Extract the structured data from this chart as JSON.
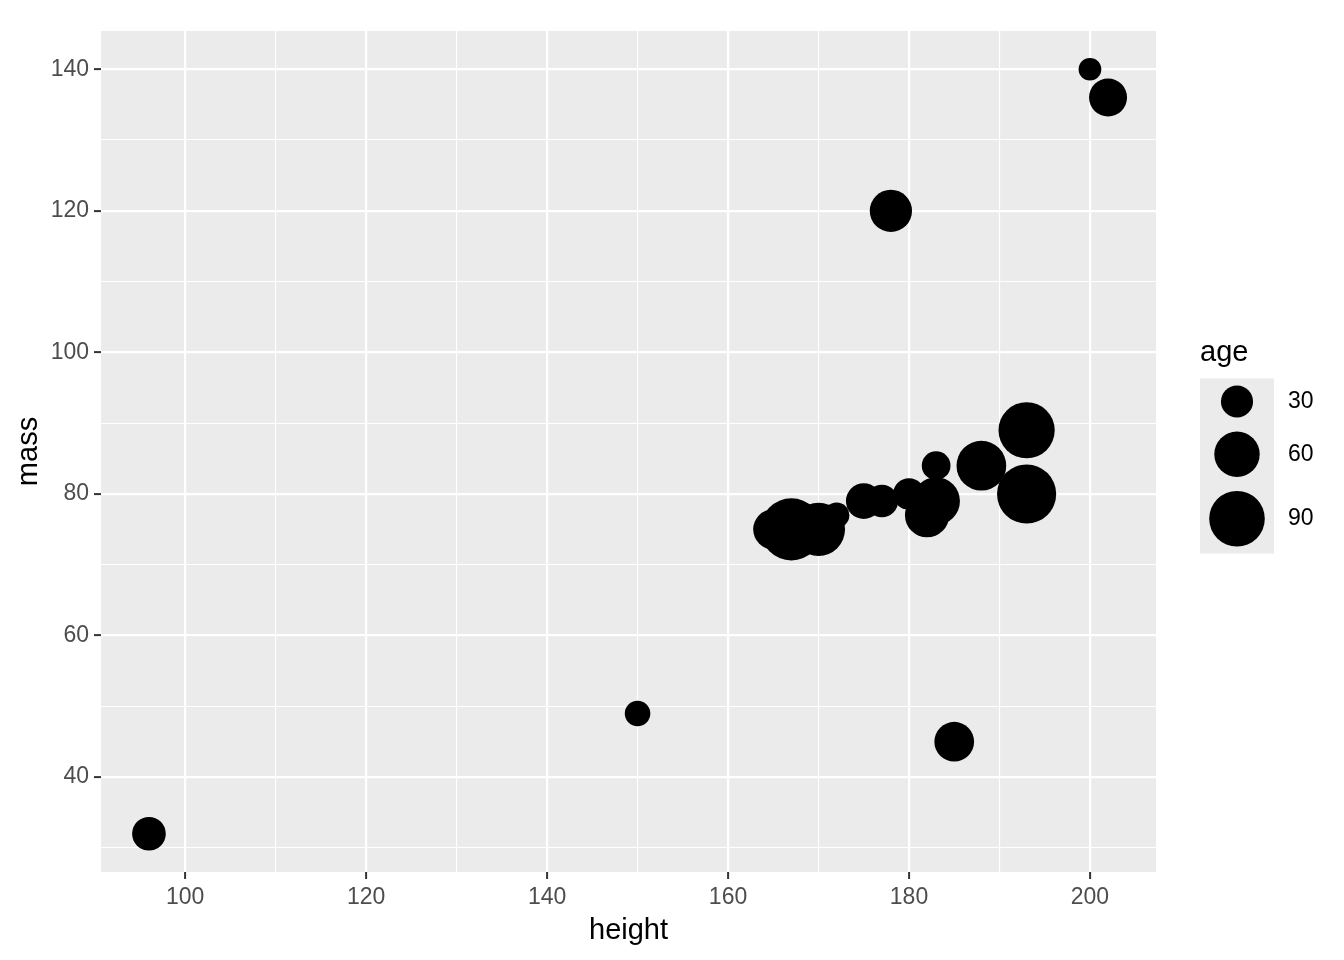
{
  "chart_data": {
    "type": "bubble",
    "xlabel": "height",
    "ylabel": "mass",
    "legend_title": "age",
    "x": [
      96,
      150,
      165,
      167,
      170,
      172,
      175,
      177,
      178,
      180,
      182,
      183,
      183,
      185,
      188,
      193,
      193,
      200,
      202
    ],
    "values": [
      32,
      49,
      75,
      75,
      75,
      77,
      79,
      79,
      120,
      80,
      77,
      79,
      84,
      45,
      84,
      89,
      80,
      140,
      136
    ],
    "sizes": [
      33,
      19,
      47,
      112,
      82,
      19,
      37,
      31,
      52,
      29,
      57,
      66,
      24,
      46,
      72,
      92,
      102,
      15,
      42
    ],
    "size_legend": [
      30,
      60,
      90
    ],
    "color": "#000000",
    "xlim": [
      90.7,
      207.3
    ],
    "ylim": [
      26.6,
      145.4
    ],
    "xticks": [
      100,
      {
        "value": 110,
        "label": null
      },
      120,
      {
        "value": 130,
        "label": null
      },
      140,
      {
        "value": 150,
        "label": null
      },
      160,
      {
        "value": 170,
        "label": null
      },
      180,
      {
        "value": 190,
        "label": null
      },
      200
    ],
    "yticks": [
      {
        "value": 30,
        "label": null
      },
      40,
      {
        "value": 50,
        "label": null
      },
      60,
      {
        "value": 70,
        "label": null
      },
      80,
      {
        "value": 90,
        "label": null
      },
      100,
      {
        "value": 110,
        "label": null
      },
      120,
      {
        "value": 130,
        "label": null
      },
      140
    ],
    "grid": true
  }
}
